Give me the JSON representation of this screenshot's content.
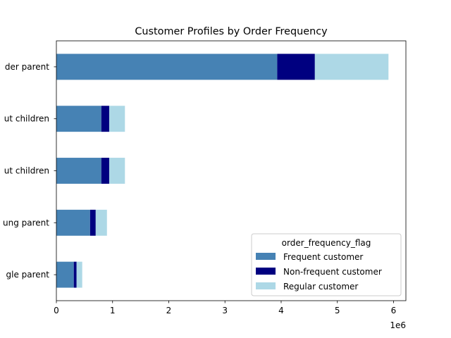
{
  "chart_data": {
    "type": "bar",
    "orientation": "horizontal",
    "stacked": true,
    "title": "Customer Profiles by Order Frequency",
    "categories": [
      "der parent",
      "ut children",
      "ut children",
      "ung parent",
      "gle parent"
    ],
    "series": [
      {
        "name": "Frequent customer",
        "color": "#4682b4",
        "values": [
          3930000,
          800000,
          800000,
          600000,
          310000
        ]
      },
      {
        "name": "Non-frequent customer",
        "color": "#000080",
        "values": [
          670000,
          140000,
          140000,
          100000,
          50000
        ]
      },
      {
        "name": "Regular customer",
        "color": "#add8e6",
        "values": [
          1310000,
          280000,
          280000,
          200000,
          100000
        ]
      }
    ],
    "xlim": [
      0,
      6220000
    ],
    "xticks": [
      0,
      1000000,
      2000000,
      3000000,
      4000000,
      5000000,
      6000000
    ],
    "xtick_labels": [
      "0",
      "1",
      "2",
      "3",
      "4",
      "5",
      "6"
    ],
    "x_offset_label": "1e6",
    "grid": false,
    "legend": {
      "title": "order_frequency_flag",
      "position": "lower-right"
    }
  }
}
